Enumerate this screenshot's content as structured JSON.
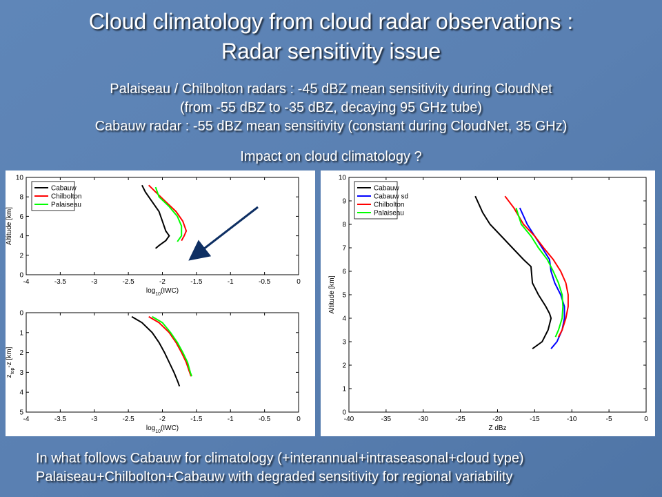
{
  "slide": {
    "title": [
      "Cloud climatology from cloud radar observations :",
      "Radar sensitivity issue"
    ],
    "subtitle": [
      "Palaiseau / Chilbolton radars : -45 dBZ mean sensitivity during CloudNet",
      "(from -55 dBZ to -35 dBZ, decaying 95 GHz tube)",
      "Cabauw radar : -55 dBZ mean sensitivity (constant during CloudNet, 35 GHz)"
    ],
    "question": "Impact on cloud climatology ?",
    "footer": [
      "In what follows Cabauw for climatology (+interannual+intraseasonal+cloud type)",
      "Palaiseau+Chilbolton+Cabauw with degraded sensitivity for regional variability"
    ]
  },
  "chart_data": [
    {
      "type": "line",
      "xlabel": [
        "log",
        "10",
        "(IWC)"
      ],
      "ylabel": [
        "Altitude [km]"
      ],
      "legend": "upper left",
      "xlim": [
        -4,
        0
      ],
      "xticks": [
        -4,
        -3.5,
        -3,
        -2.5,
        -2,
        -1.5,
        -1,
        -0.5,
        0
      ],
      "ylim": [
        0,
        10
      ],
      "yticks": [
        0,
        2,
        4,
        6,
        8,
        10
      ],
      "series": [
        {
          "name": "Cabauw",
          "color": "#000000",
          "x": [
            -2.3,
            -2.25,
            -2.15,
            -2.05,
            -2.0,
            -1.95,
            -1.9,
            -1.95,
            -2.05,
            -2.1
          ],
          "values": [
            9.2,
            8.5,
            7.5,
            6.5,
            5.5,
            4.5,
            4.0,
            3.5,
            3.0,
            2.7
          ]
        },
        {
          "name": "Chilbolton",
          "color": "#ff0000",
          "x": [
            -2.2,
            -2.1,
            -1.95,
            -1.8,
            -1.7,
            -1.65,
            -1.68,
            -1.72
          ],
          "values": [
            9.2,
            8.5,
            7.5,
            6.5,
            5.5,
            4.5,
            4.0,
            3.5
          ]
        },
        {
          "name": "Palaiseau",
          "color": "#00ff00",
          "x": [
            -2.1,
            -2.05,
            -1.9,
            -1.78,
            -1.72,
            -1.72,
            -1.78
          ],
          "values": [
            9.0,
            8.0,
            7.0,
            6.0,
            5.0,
            4.0,
            3.4
          ]
        }
      ]
    },
    {
      "type": "line",
      "xlabel": [
        "log",
        "10",
        "(IWC)"
      ],
      "ylabel": [
        "z",
        "top",
        "-z [km]"
      ],
      "xlim": [
        -4,
        0
      ],
      "xticks": [
        -4,
        -3.5,
        -3,
        -2.5,
        -2,
        -1.5,
        -1,
        -0.5,
        0
      ],
      "ylim": [
        5,
        0
      ],
      "yticks": [
        0,
        1,
        2,
        3,
        4,
        5
      ],
      "series": [
        {
          "name": "Cabauw",
          "color": "#000000",
          "x": [
            -2.45,
            -2.3,
            -2.15,
            -2.05,
            -1.97,
            -1.9,
            -1.83,
            -1.77,
            -1.75
          ],
          "values": [
            0.2,
            0.5,
            1,
            1.5,
            2,
            2.5,
            3,
            3.5,
            3.7
          ]
        },
        {
          "name": "Chilbolton",
          "color": "#ff0000",
          "x": [
            -2.2,
            -2.05,
            -1.9,
            -1.8,
            -1.72,
            -1.65,
            -1.6,
            -1.58
          ],
          "values": [
            0.2,
            0.5,
            1,
            1.5,
            2,
            2.5,
            3,
            3.2
          ]
        },
        {
          "name": "Palaiseau",
          "color": "#00ff00",
          "x": [
            -2.15,
            -2.0,
            -1.88,
            -1.78,
            -1.7,
            -1.63,
            -1.59,
            -1.57
          ],
          "values": [
            0.2,
            0.5,
            1,
            1.5,
            2,
            2.5,
            3,
            3.2
          ]
        }
      ]
    },
    {
      "type": "line",
      "xlabel": [
        "Z dBz"
      ],
      "ylabel": [
        "Altitude [km]"
      ],
      "legend": "upper left",
      "xlim": [
        -40,
        0
      ],
      "xticks": [
        -40,
        -35,
        -30,
        -25,
        -20,
        -15,
        -10,
        -5,
        0
      ],
      "ylim": [
        0,
        10
      ],
      "yticks": [
        0,
        1,
        2,
        3,
        4,
        5,
        6,
        7,
        8,
        9,
        10
      ],
      "series": [
        {
          "name": "Cabauw",
          "color": "#000000",
          "x": [
            -23,
            -22,
            -21,
            -19.5,
            -18,
            -16.5,
            -15.5,
            -15.3,
            -14.5,
            -13.5,
            -13,
            -12.8,
            -13.2,
            -14,
            -15.3
          ],
          "values": [
            9.2,
            8.5,
            8,
            7.5,
            7,
            6.5,
            6.2,
            5.5,
            5,
            4.5,
            4.2,
            4,
            3.5,
            3,
            2.7
          ]
        },
        {
          "name": "Cabauw sd",
          "color": "#0000ff",
          "x": [
            -17,
            -16,
            -15,
            -14,
            -13,
            -12.8,
            -12.3,
            -11.5,
            -11,
            -11,
            -11.3,
            -12,
            -12.8
          ],
          "values": [
            8.7,
            8,
            7.5,
            7,
            6.5,
            6,
            5.5,
            5,
            4.5,
            4,
            3.5,
            3,
            2.7
          ]
        },
        {
          "name": "Chilbolton",
          "color": "#ff0000",
          "x": [
            -19,
            -17.8,
            -16.5,
            -15,
            -13.8,
            -12.5,
            -11.5,
            -10.8,
            -10.5,
            -10.5,
            -10.8,
            -11.3,
            -11.8
          ],
          "values": [
            9.2,
            8.7,
            8,
            7.5,
            7,
            6.5,
            6,
            5.5,
            5,
            4.5,
            4,
            3.5,
            3.2
          ]
        },
        {
          "name": "Palaiseau",
          "color": "#00ff00",
          "x": [
            -17.5,
            -16.8,
            -15.5,
            -14.5,
            -13.3,
            -12.5,
            -11.8,
            -11.3,
            -11.2,
            -11.3,
            -11.8,
            -12.2
          ],
          "values": [
            8.7,
            8,
            7.5,
            7,
            6.5,
            6,
            5.5,
            5,
            4.5,
            4,
            3.5,
            3.2
          ]
        }
      ]
    }
  ]
}
